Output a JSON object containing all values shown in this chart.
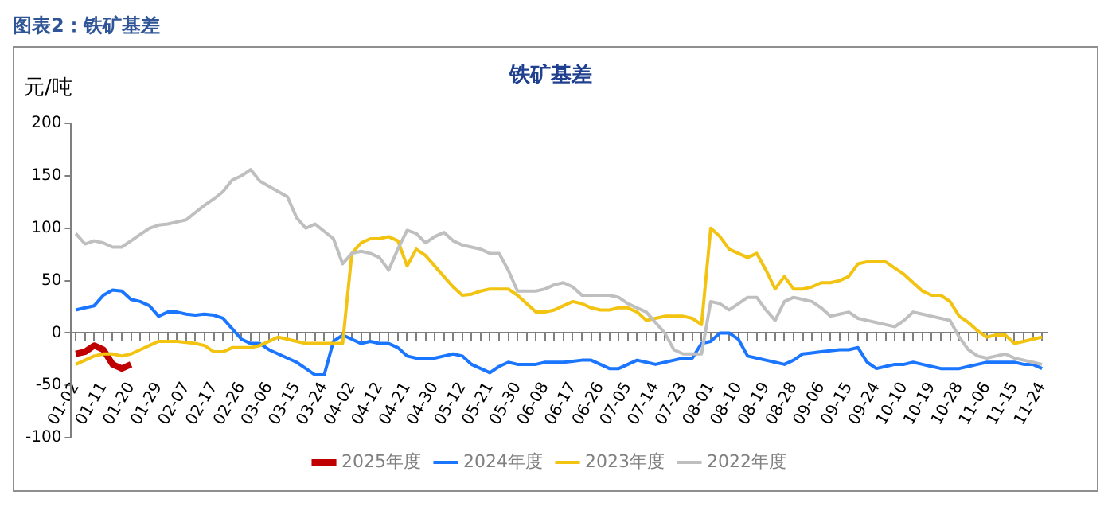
{
  "chart_data": {
    "type": "line",
    "title": "铁矿基差",
    "ylabel": "元/吨",
    "annotations": [
      "图表2：铁矿基差"
    ],
    "categories": [
      "01-02",
      null,
      null,
      "01-11",
      null,
      null,
      "01-20",
      null,
      null,
      "01-29",
      null,
      null,
      "02-07",
      null,
      null,
      "02-17",
      null,
      null,
      "02-26",
      null,
      null,
      "03-06",
      null,
      null,
      "03-15",
      null,
      null,
      "03-24",
      null,
      null,
      "04-02",
      null,
      null,
      "04-12",
      null,
      null,
      "04-21",
      null,
      null,
      "04-30",
      null,
      null,
      "05-12",
      null,
      null,
      "05-21",
      null,
      null,
      "05-30",
      null,
      null,
      "06-08",
      null,
      null,
      "06-17",
      null,
      null,
      "06-26",
      null,
      null,
      "07-05",
      null,
      null,
      "07-14",
      null,
      null,
      "07-23",
      null,
      null,
      "08-01",
      null,
      null,
      "08-10",
      null,
      null,
      "08-19",
      null,
      null,
      "08-28",
      null,
      null,
      "09-06",
      null,
      null,
      "09-15",
      null,
      null,
      "09-24",
      null,
      null,
      "10-10",
      null,
      null,
      "10-19",
      null,
      null,
      "10-28",
      null,
      null,
      "11-06",
      null,
      null,
      "11-15",
      null,
      null,
      "11-24"
    ],
    "series": [
      {
        "name": "2025年度",
        "color": "#c00000",
        "values": [
          -20,
          -18,
          -12,
          -16,
          -30,
          -34,
          -30,
          null,
          null,
          null,
          null,
          null,
          null,
          null,
          null,
          null,
          null,
          null,
          null,
          null,
          null,
          null,
          null,
          null,
          null,
          null,
          null,
          null,
          null,
          null,
          null,
          null,
          null,
          null,
          null,
          null,
          null,
          null,
          null,
          null,
          null,
          null,
          null,
          null,
          null,
          null,
          null,
          null,
          null,
          null,
          null,
          null,
          null,
          null,
          null,
          null,
          null,
          null,
          null,
          null,
          null,
          null,
          null,
          null,
          null,
          null,
          null,
          null,
          null,
          null,
          null,
          null,
          null,
          null,
          null,
          null,
          null,
          null,
          null,
          null,
          null,
          null,
          null,
          null,
          null,
          null,
          null,
          null,
          null,
          null,
          null,
          null,
          null,
          null,
          null,
          null,
          null,
          null,
          null,
          null,
          null,
          null,
          null,
          null,
          null,
          null
        ]
      },
      {
        "name": "2024年度",
        "color": "#1a75ff",
        "values": [
          22,
          24,
          26,
          36,
          41,
          40,
          32,
          30,
          26,
          16,
          20,
          20,
          18,
          17,
          18,
          17,
          14,
          4,
          -6,
          -10,
          -10,
          -16,
          -20,
          -24,
          -28,
          -34,
          -40,
          -40,
          -8,
          -2,
          -6,
          -10,
          -8,
          -10,
          -10,
          -14,
          -22,
          -24,
          -24,
          -24,
          -22,
          -20,
          -22,
          -30,
          -34,
          -38,
          -32,
          -28,
          -30,
          -30,
          -30,
          -28,
          -28,
          -28,
          -27,
          -26,
          -26,
          -30,
          -34,
          -34,
          -30,
          -26,
          -28,
          -30,
          -28,
          -26,
          -24,
          -24,
          -10,
          -8,
          0,
          0,
          -6,
          -22,
          -24,
          -26,
          -28,
          -30,
          -26,
          -20,
          -19,
          -18,
          -17,
          -16,
          -16,
          -14,
          -28,
          -34,
          -32,
          -30,
          -30,
          -28,
          -30,
          -32,
          -34,
          -34,
          -34,
          -32,
          -30,
          -28,
          -28,
          -28,
          -28,
          -30,
          -30,
          -34
        ]
      },
      {
        "name": "2023年度",
        "color": "#f2c311",
        "values": [
          -30,
          -26,
          -22,
          -20,
          -20,
          -22,
          -20,
          -16,
          -12,
          -8,
          -8,
          -8,
          -9,
          -10,
          -12,
          -18,
          -18,
          -14,
          -14,
          -14,
          -12,
          -8,
          -4,
          -6,
          -8,
          -10,
          -10,
          -10,
          -10,
          -10,
          76,
          86,
          90,
          90,
          92,
          88,
          64,
          80,
          74,
          64,
          54,
          44,
          36,
          37,
          40,
          42,
          42,
          42,
          36,
          28,
          20,
          20,
          22,
          26,
          30,
          28,
          24,
          22,
          22,
          24,
          24,
          20,
          12,
          14,
          16,
          16,
          16,
          14,
          8,
          100,
          92,
          80,
          76,
          72,
          76,
          60,
          42,
          54,
          42,
          42,
          44,
          48,
          48,
          50,
          54,
          66,
          68,
          68,
          68,
          62,
          56,
          48,
          40,
          36,
          36,
          30,
          16,
          10,
          2,
          -4,
          -2,
          -2,
          -10,
          -8,
          -6,
          -4
        ]
      },
      {
        "name": "2022年度",
        "color": "#bfbfbf",
        "values": [
          95,
          85,
          88,
          86,
          82,
          82,
          88,
          94,
          100,
          103,
          104,
          106,
          108,
          115,
          122,
          128,
          135,
          146,
          150,
          156,
          145,
          140,
          135,
          130,
          110,
          100,
          104,
          97,
          90,
          66,
          76,
          78,
          76,
          72,
          60,
          80,
          98,
          95,
          86,
          92,
          96,
          88,
          84,
          82,
          80,
          76,
          76,
          60,
          40,
          40,
          40,
          42,
          46,
          48,
          44,
          36,
          36,
          36,
          36,
          34,
          28,
          24,
          20,
          10,
          0,
          -16,
          -20,
          -20,
          -20,
          30,
          28,
          22,
          28,
          34,
          34,
          22,
          12,
          30,
          34,
          32,
          30,
          24,
          16,
          18,
          20,
          14,
          12,
          10,
          8,
          6,
          12,
          20,
          18,
          16,
          14,
          12,
          -4,
          -16,
          -22,
          -24,
          -22,
          -20,
          -24,
          -26,
          -28,
          -30
        ]
      }
    ],
    "ylim": [
      -100,
      200
    ],
    "yticks": [
      -100,
      -50,
      0,
      50,
      100,
      150,
      200
    ],
    "legend": "bottom",
    "marker": "none",
    "line_style": "solid"
  }
}
